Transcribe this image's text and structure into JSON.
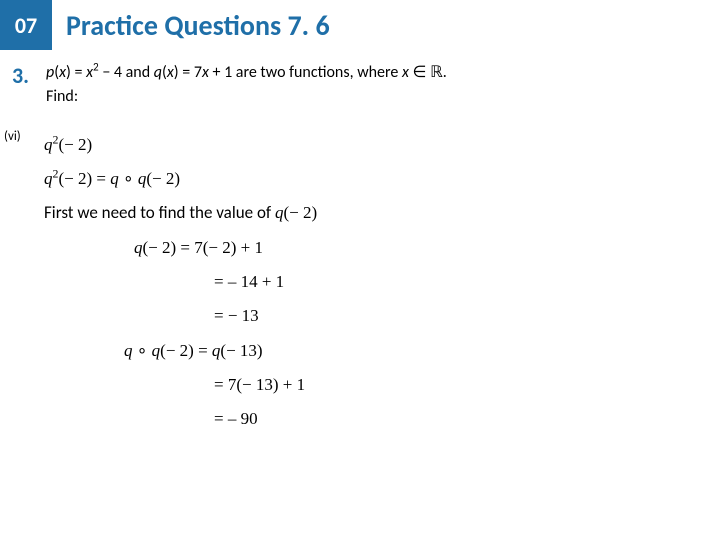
{
  "header": {
    "chapter": "07",
    "title": "Practice Questions 7. 6"
  },
  "question": {
    "number": "3.",
    "statement_html": "<span class='ital'>p</span>(<span class='ital'>x</span>) = <span class='ital'>x</span><sup>2</sup> − 4 and <span class='ital'>q</span>(<span class='ital'>x</span>) = 7<span class='ital'>x</span> + 1 are two functions, where <span class='ital'>x</span> ∈ ℝ.",
    "find": "Find:"
  },
  "subpart": {
    "label": "(vi)",
    "lines": [
      {
        "cls": "",
        "html": "<span class='ital'>q</span><sup>2</sup>(− 2)"
      },
      {
        "cls": "",
        "html": "<span class='ital'>q</span><sup>2</sup>(− 2) = <span class='ital'>q</span> ∘ <span class='ital'>q</span>(− 2)"
      },
      {
        "cls": "",
        "html": "<span style='font-family:Calibri,Arial,sans-serif'>First we need to find the value of </span><span class='ital'>q</span>(− 2)"
      },
      {
        "cls": "indent1",
        "html": "<span class='ital'>q</span>(− 2) = 7(− 2) + 1"
      },
      {
        "cls": "indent2",
        "html": "= – 14 + 1"
      },
      {
        "cls": "indent2",
        "html": "= − 13"
      },
      {
        "cls": "indent3",
        "html": "<span class='ital'>q</span> ∘ <span class='ital'>q</span>(− 2) = <span class='ital'>q</span>(− 13)"
      },
      {
        "cls": "indent2",
        "html": "= 7(− 13) + 1"
      },
      {
        "cls": "indent2",
        "html": "= – 90"
      }
    ]
  },
  "colors": {
    "accent": "#1f6fa8",
    "text": "#000000",
    "background": "#ffffff"
  }
}
